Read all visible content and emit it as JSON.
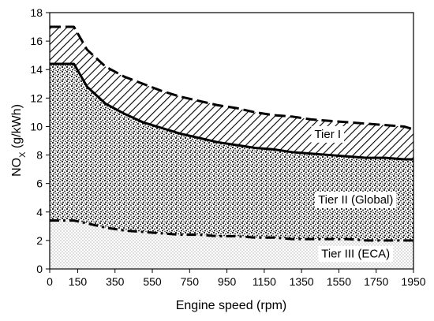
{
  "chart_data": {
    "type": "area",
    "title": "",
    "xlabel": "Engine speed  (rpm)",
    "ylabel_main": "NO",
    "ylabel_sub": "X",
    "ylabel_unit": "  (g/kWh)",
    "xlim": [
      0,
      1950
    ],
    "ylim": [
      0,
      18
    ],
    "x_ticks": [
      0,
      150,
      350,
      550,
      750,
      950,
      1150,
      1350,
      1550,
      1750,
      1950
    ],
    "x_tick_labels": [
      "0",
      "150",
      "350",
      "550",
      "750",
      "950",
      "1150",
      "1350",
      "1550",
      "1750",
      "1950"
    ],
    "y_ticks": [
      0,
      2,
      4,
      6,
      8,
      10,
      12,
      14,
      16,
      18
    ],
    "y_tick_labels": [
      "0",
      "2",
      "4",
      "6",
      "8",
      "10",
      "12",
      "14",
      "16",
      "18"
    ],
    "grid": false,
    "series": [
      {
        "name": "Tier I",
        "line_style": "dashed",
        "x": [
          0,
          130,
          200,
          300,
          400,
          500,
          600,
          700,
          800,
          900,
          1000,
          1100,
          1200,
          1300,
          1400,
          1500,
          1600,
          1700,
          1800,
          1900,
          1950
        ],
        "y": [
          17.0,
          17.0,
          15.4,
          14.2,
          13.5,
          13.0,
          12.5,
          12.1,
          11.8,
          11.5,
          11.3,
          11.0,
          10.8,
          10.7,
          10.5,
          10.4,
          10.3,
          10.2,
          10.1,
          10.0,
          9.8
        ]
      },
      {
        "name": "Tier II (Global)",
        "line_style": "solid",
        "x": [
          0,
          130,
          200,
          300,
          400,
          500,
          600,
          700,
          800,
          900,
          1000,
          1100,
          1200,
          1300,
          1400,
          1500,
          1600,
          1700,
          1800,
          1900,
          1950
        ],
        "y": [
          14.4,
          14.4,
          12.8,
          11.6,
          10.9,
          10.3,
          9.9,
          9.5,
          9.2,
          8.9,
          8.7,
          8.5,
          8.4,
          8.2,
          8.1,
          8.0,
          7.9,
          7.8,
          7.8,
          7.7,
          7.7
        ]
      },
      {
        "name": "Tier III (ECA)",
        "line_style": "dash-dot",
        "x": [
          0,
          130,
          200,
          300,
          400,
          500,
          600,
          700,
          800,
          900,
          1000,
          1100,
          1200,
          1300,
          1400,
          1500,
          1600,
          1700,
          1800,
          1900,
          1950
        ],
        "y": [
          3.4,
          3.4,
          3.2,
          2.9,
          2.7,
          2.6,
          2.5,
          2.4,
          2.4,
          2.3,
          2.3,
          2.2,
          2.2,
          2.1,
          2.1,
          2.1,
          2.1,
          2.0,
          2.0,
          2.0,
          2.0
        ]
      }
    ],
    "annotations": [
      {
        "text": "Tier I",
        "x": 1490,
        "y": 9.2
      },
      {
        "text": "Tier II (Global)",
        "x": 1640,
        "y": 4.6
      },
      {
        "text": "Tier III (ECA)",
        "x": 1640,
        "y": 0.8
      }
    ]
  }
}
